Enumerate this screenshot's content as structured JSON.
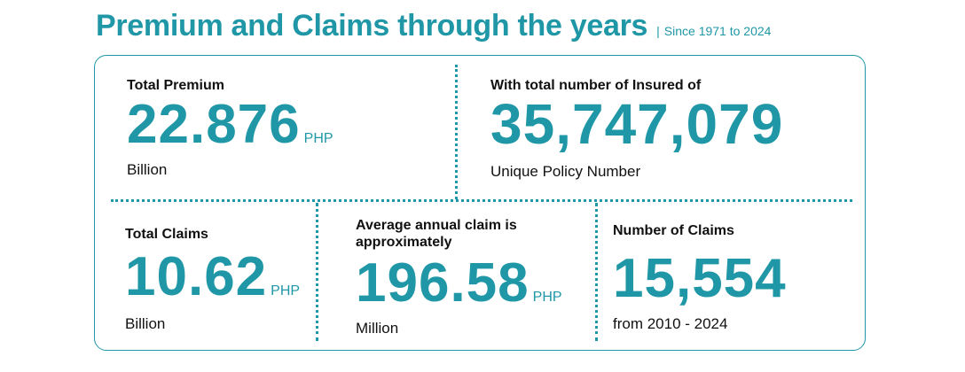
{
  "header": {
    "title": "Premium and Claims through the years",
    "separator": "|",
    "subtitle": "Since 1971 to 2024"
  },
  "stats": {
    "total_premium": {
      "label": "Total Premium",
      "value": "22.876",
      "unit": "PHP",
      "sub": "Billion"
    },
    "insured": {
      "label": "With total number of Insured of",
      "value": "35,747,079",
      "sub": "Unique Policy Number"
    },
    "total_claims": {
      "label": "Total Claims",
      "value": "10.62",
      "unit": "PHP",
      "sub": "Billion"
    },
    "average_claim": {
      "label": "Average annual claim is approximately",
      "value": "196.58",
      "unit": "PHP",
      "sub": "Million"
    },
    "number_claims": {
      "label": "Number of Claims",
      "value": "15,554",
      "sub": "from 2010 - 2024"
    }
  },
  "colors": {
    "accent": "#1f97a6",
    "text": "#111111"
  }
}
